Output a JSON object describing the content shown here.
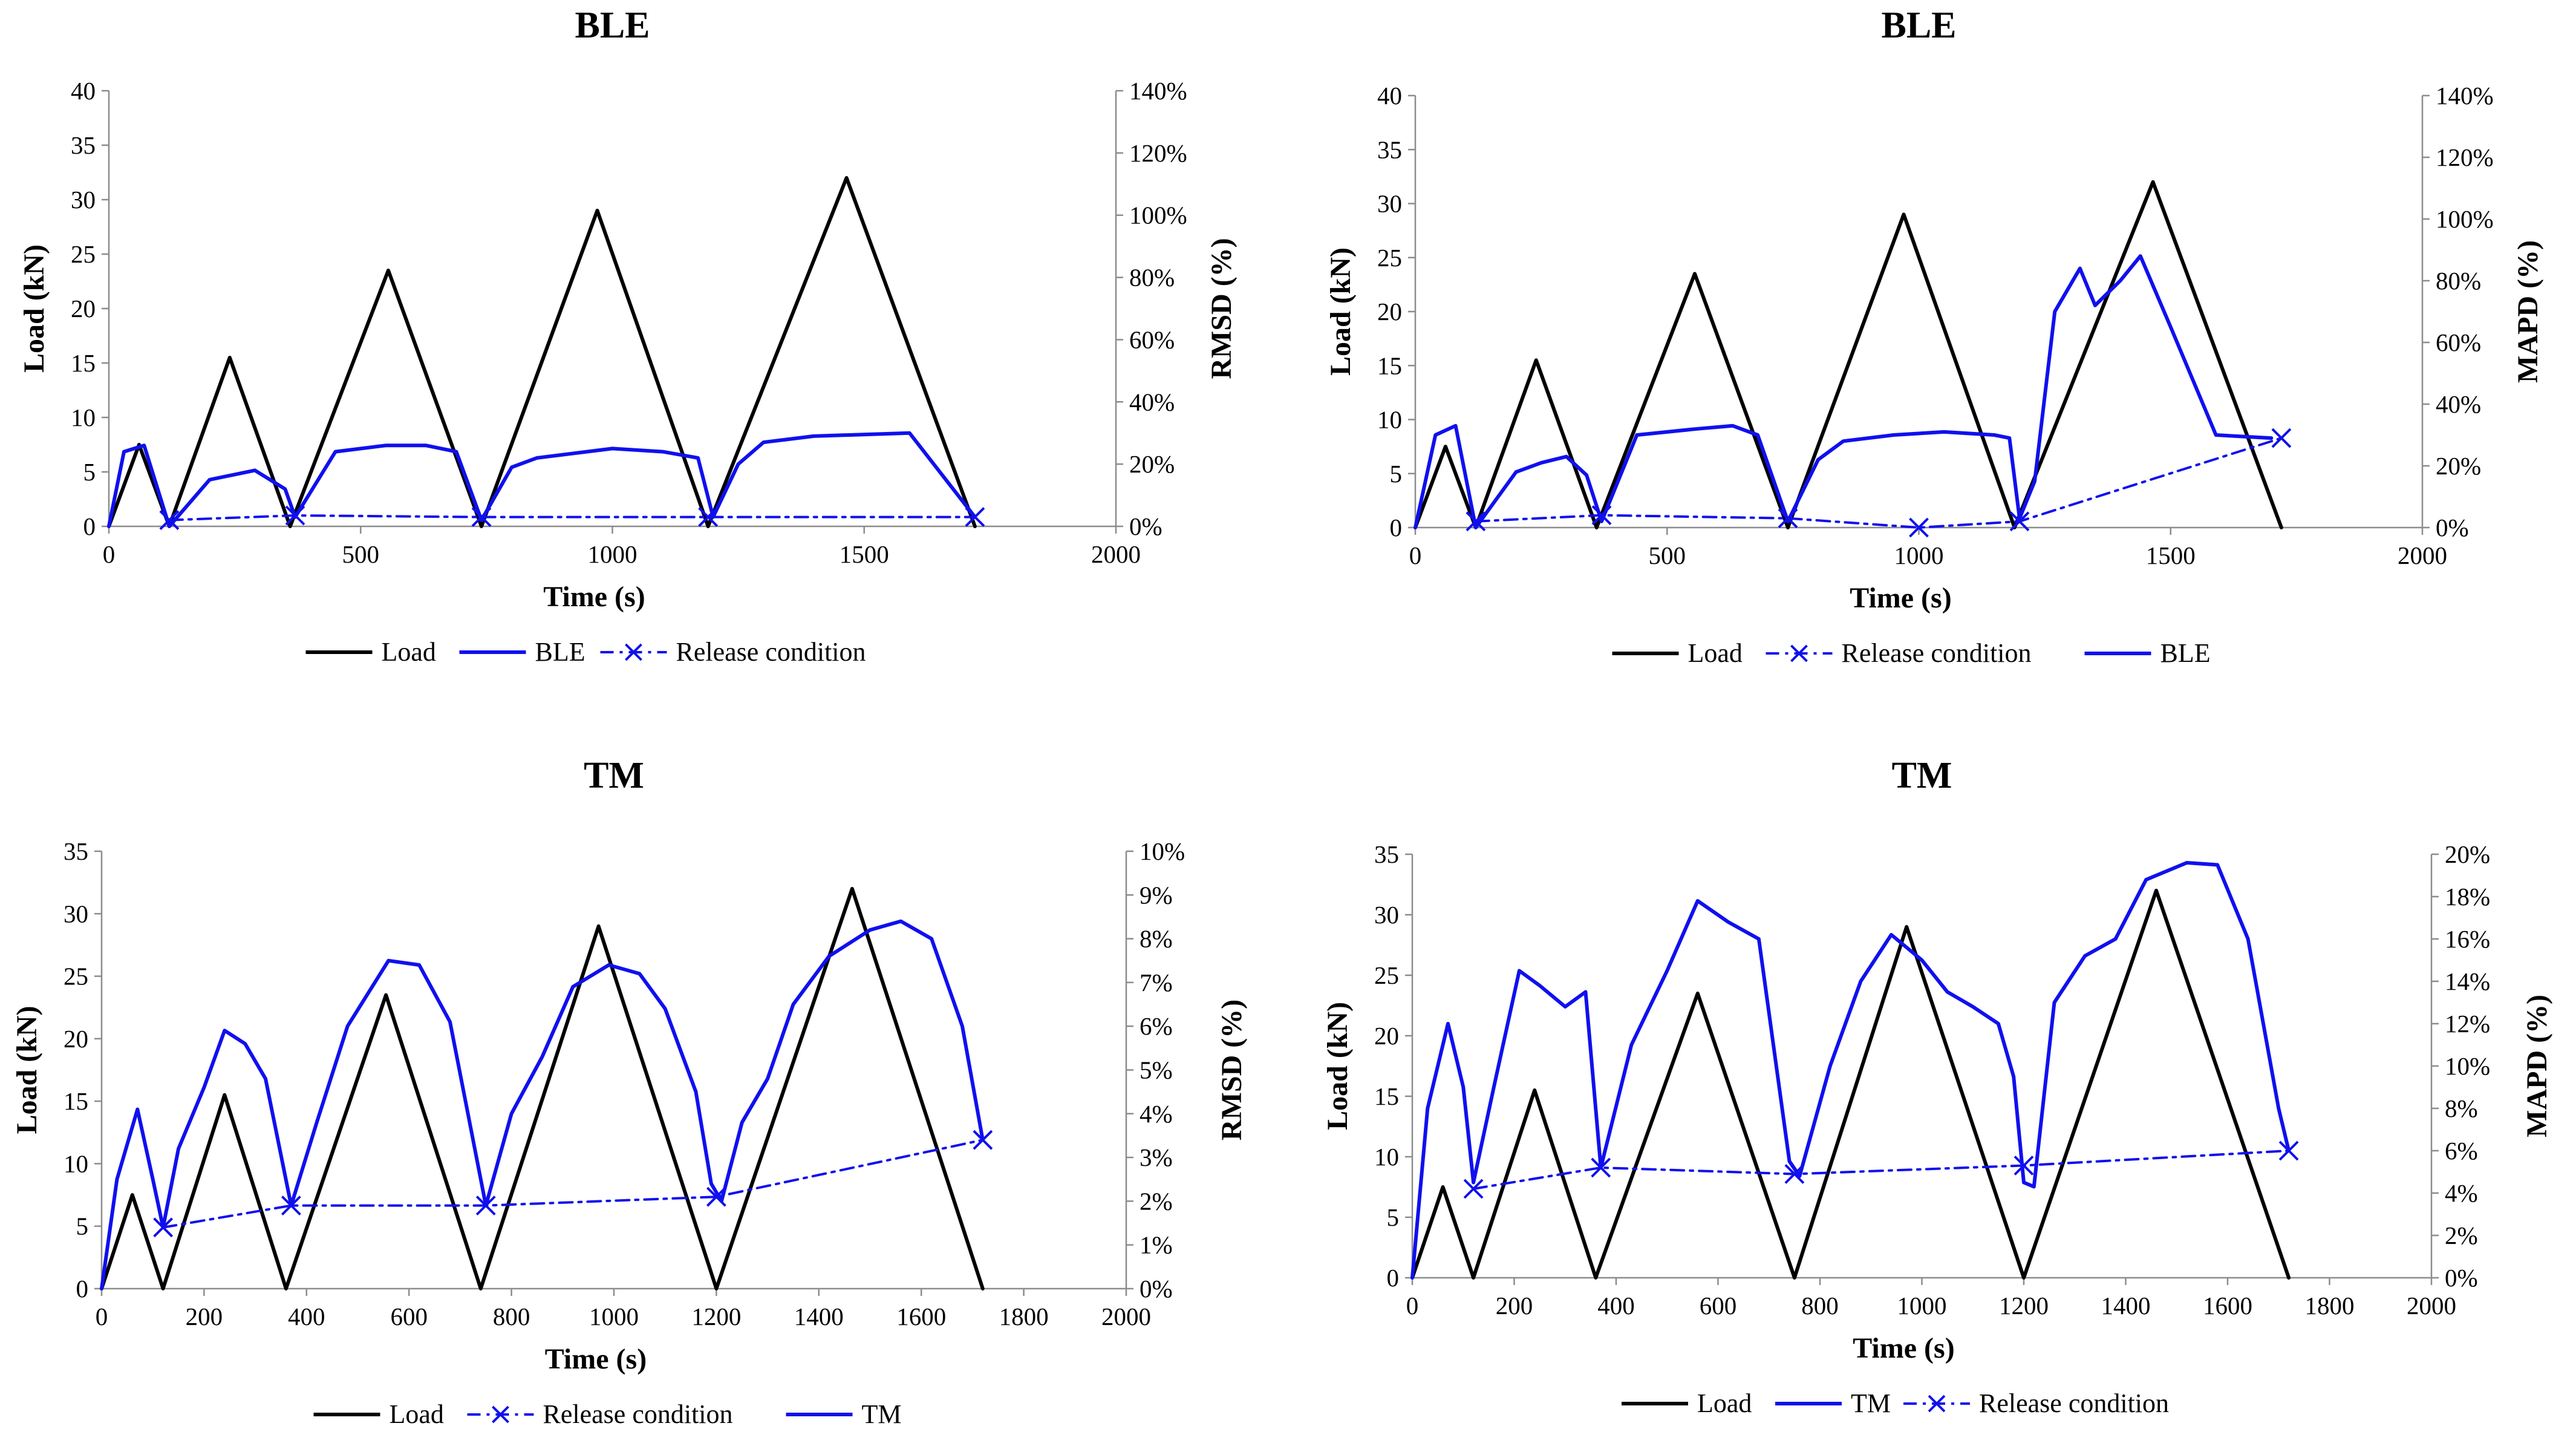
{
  "chart_data": [
    {
      "type": "line",
      "title": "BLE",
      "xlabel": "Time  (s)",
      "ylabel": "Load (kN)",
      "y2label": "RMSD (%)",
      "xlim": [
        0,
        2000
      ],
      "xticks": [
        "0",
        "500",
        "1000",
        "1500",
        "2000"
      ],
      "ylim": [
        0,
        40
      ],
      "yticks": [
        "0",
        "5",
        "10",
        "15",
        "20",
        "25",
        "30",
        "35",
        "40"
      ],
      "y2lim": [
        0,
        140
      ],
      "y2ticks": [
        "0%",
        "20%",
        "40%",
        "60%",
        "80%",
        "100%",
        "120%",
        "140%"
      ],
      "legend": [
        "Load",
        "BLE",
        "Release condition"
      ],
      "series": [
        {
          "name": "Load",
          "axis": "left",
          "style": "load",
          "x": [
            0,
            60,
            120,
            240,
            360,
            555,
            740,
            970,
            1190,
            1465,
            1720
          ],
          "y": [
            0,
            7.5,
            0,
            15.5,
            0,
            23.5,
            0,
            29,
            0,
            32,
            0
          ]
        },
        {
          "name": "BLE",
          "axis": "right",
          "style": "solid",
          "x": [
            0,
            30,
            70,
            120,
            200,
            290,
            350,
            370,
            450,
            550,
            630,
            690,
            740,
            800,
            850,
            1000,
            1100,
            1170,
            1200,
            1250,
            1300,
            1350,
            1400,
            1590,
            1720
          ],
          "y": [
            0,
            24,
            26,
            0,
            15,
            18,
            12,
            3,
            24,
            26,
            26,
            24,
            2,
            19,
            22,
            25,
            24,
            22,
            3,
            20,
            27,
            28,
            29,
            30,
            3
          ]
        },
        {
          "name": "Release condition",
          "axis": "right",
          "style": "dashdot",
          "x": [
            120,
            370,
            740,
            1190,
            1720
          ],
          "y": [
            2,
            3.5,
            3,
            3,
            3
          ]
        }
      ]
    },
    {
      "type": "line",
      "title": "BLE",
      "xlabel": "Time  (s)",
      "ylabel": "Load (kN)",
      "y2label": "MAPD (%)",
      "xlim": [
        0,
        2000
      ],
      "xticks": [
        "0",
        "500",
        "1000",
        "1500",
        "2000"
      ],
      "ylim": [
        0,
        40
      ],
      "yticks": [
        "0",
        "5",
        "10",
        "15",
        "20",
        "25",
        "30",
        "35",
        "40"
      ],
      "y2lim": [
        0,
        140
      ],
      "y2ticks": [
        "0%",
        "20%",
        "40%",
        "60%",
        "80%",
        "100%",
        "120%",
        "140%"
      ],
      "legend": [
        "Load",
        "Release condition",
        "BLE"
      ],
      "series": [
        {
          "name": "Load",
          "axis": "left",
          "style": "load",
          "x": [
            0,
            60,
            120,
            240,
            360,
            555,
            740,
            970,
            1190,
            1465,
            1720
          ],
          "y": [
            0,
            7.5,
            0,
            15.5,
            0,
            23.5,
            0,
            29,
            0,
            32,
            0
          ]
        },
        {
          "name": "BLE",
          "axis": "right",
          "style": "solid",
          "x": [
            0,
            40,
            80,
            120,
            200,
            250,
            300,
            340,
            370,
            440,
            560,
            630,
            680,
            740,
            800,
            850,
            950,
            1050,
            1150,
            1180,
            1200,
            1230,
            1270,
            1320,
            1350,
            1400,
            1440,
            1500,
            1590,
            1700
          ],
          "y": [
            0,
            30,
            33,
            0,
            18,
            21,
            23,
            17,
            2,
            30,
            32,
            33,
            30,
            2,
            22,
            28,
            30,
            31,
            30,
            29,
            3,
            15,
            70,
            84,
            72,
            80,
            88,
            65,
            30,
            29
          ]
        },
        {
          "name": "Release condition",
          "axis": "right",
          "style": "dashdot",
          "x": [
            120,
            370,
            740,
            1000,
            1200,
            1720
          ],
          "y": [
            2,
            4,
            3,
            0,
            2,
            29
          ]
        }
      ]
    },
    {
      "type": "line",
      "title": "TM",
      "xlabel": "Time  (s)",
      "ylabel": "Load (kN)",
      "y2label": "RMSD (%)",
      "xlim": [
        0,
        2000
      ],
      "xticks": [
        "0",
        "200",
        "400",
        "600",
        "800",
        "1000",
        "1200",
        "1400",
        "1600",
        "1800",
        "2000"
      ],
      "ylim": [
        0,
        35
      ],
      "yticks": [
        "0",
        "5",
        "10",
        "15",
        "20",
        "25",
        "30",
        "35"
      ],
      "y2lim": [
        0,
        10
      ],
      "y2ticks": [
        "0%",
        "1%",
        "2%",
        "3%",
        "4%",
        "5%",
        "6%",
        "7%",
        "8%",
        "9%",
        "10%"
      ],
      "legend": [
        "Load",
        "Release condition",
        "TM"
      ],
      "series": [
        {
          "name": "Load",
          "axis": "left",
          "style": "load",
          "x": [
            0,
            60,
            120,
            240,
            360,
            555,
            740,
            970,
            1200,
            1465,
            1720
          ],
          "y": [
            0,
            7.5,
            0,
            15.5,
            0,
            23.5,
            0,
            29,
            0,
            32,
            0
          ]
        },
        {
          "name": "TM",
          "axis": "right",
          "style": "solid",
          "x": [
            0,
            30,
            70,
            100,
            120,
            150,
            200,
            240,
            280,
            320,
            370,
            420,
            480,
            560,
            620,
            680,
            750,
            800,
            860,
            920,
            990,
            1050,
            1100,
            1160,
            1190,
            1210,
            1250,
            1300,
            1350,
            1420,
            1500,
            1560,
            1620,
            1680,
            1720
          ],
          "y": [
            0,
            2.5,
            4.1,
            2.5,
            1.4,
            3.2,
            4.6,
            5.9,
            5.6,
            4.8,
            1.9,
            3.8,
            6.0,
            7.5,
            7.4,
            6.1,
            1.9,
            4.0,
            5.3,
            6.9,
            7.4,
            7.2,
            6.4,
            4.5,
            2.4,
            2.0,
            3.8,
            4.8,
            6.5,
            7.6,
            8.2,
            8.4,
            8.0,
            6.0,
            3.4
          ]
        },
        {
          "name": "Release condition",
          "axis": "right",
          "style": "dashdot",
          "x": [
            120,
            370,
            750,
            1200,
            1720
          ],
          "y": [
            1.4,
            1.9,
            1.9,
            2.1,
            3.4
          ]
        }
      ]
    },
    {
      "type": "line",
      "title": "TM",
      "xlabel": "Time  (s)",
      "ylabel": "Load (kN)",
      "y2label": "MAPD (%)",
      "xlim": [
        0,
        2000
      ],
      "xticks": [
        "0",
        "200",
        "400",
        "600",
        "800",
        "1000",
        "1200",
        "1400",
        "1600",
        "1800",
        "2000"
      ],
      "ylim": [
        0,
        35
      ],
      "yticks": [
        "0",
        "5",
        "10",
        "15",
        "20",
        "25",
        "30",
        "35"
      ],
      "y2lim": [
        0,
        20
      ],
      "y2ticks": [
        "0%",
        "2%",
        "4%",
        "6%",
        "8%",
        "10%",
        "12%",
        "14%",
        "16%",
        "18%",
        "20%"
      ],
      "legend": [
        "Load",
        "TM",
        "Release condition"
      ],
      "series": [
        {
          "name": "Load",
          "axis": "left",
          "style": "load",
          "x": [
            0,
            60,
            120,
            240,
            360,
            560,
            750,
            970,
            1200,
            1460,
            1720
          ],
          "y": [
            0,
            7.5,
            0,
            15.5,
            0,
            23.5,
            0,
            29,
            0,
            32,
            0
          ]
        },
        {
          "name": "TM",
          "axis": "right",
          "style": "solid",
          "x": [
            0,
            30,
            70,
            100,
            120,
            160,
            210,
            250,
            300,
            340,
            370,
            430,
            500,
            560,
            620,
            680,
            740,
            760,
            820,
            880,
            940,
            1000,
            1050,
            1100,
            1150,
            1180,
            1200,
            1220,
            1260,
            1320,
            1380,
            1440,
            1520,
            1580,
            1640,
            1700,
            1720
          ],
          "y": [
            0,
            8,
            12,
            9,
            4.5,
            9,
            14.5,
            13.8,
            12.8,
            13.5,
            5.2,
            11,
            14.5,
            17.8,
            16.8,
            16,
            5.5,
            4.8,
            10,
            14,
            16.2,
            15,
            13.5,
            12.8,
            12,
            9.5,
            4.5,
            4.3,
            13,
            15.2,
            16,
            18.8,
            19.6,
            19.5,
            16,
            8,
            6
          ]
        },
        {
          "name": "Release condition",
          "axis": "right",
          "style": "dashdot",
          "x": [
            120,
            370,
            750,
            1200,
            1720
          ],
          "y": [
            4.2,
            5.2,
            4.9,
            5.3,
            6
          ]
        }
      ]
    }
  ]
}
